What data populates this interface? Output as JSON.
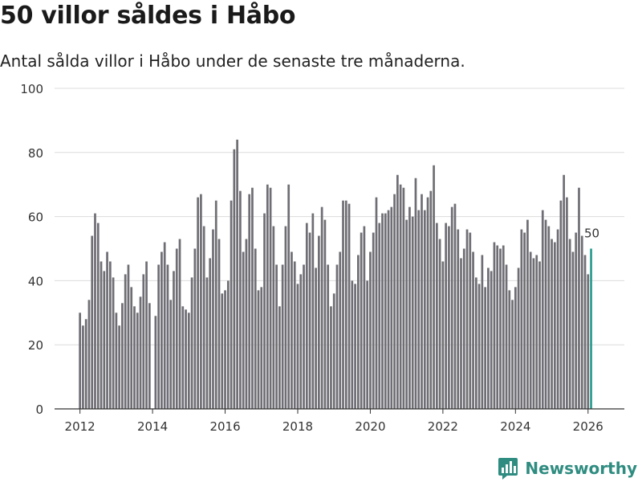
{
  "title": "50 villor såldes i Håbo",
  "subtitle": "Antal sålda villor i Håbo under de senaste tre månaderna.",
  "logo": {
    "text": "Newsworthy",
    "icon": "chart-logo-icon"
  },
  "colors": {
    "bar": "#6f6e74",
    "highlight": "#2a9d8f",
    "grid": "#dcdcdc",
    "axis": "#333333"
  },
  "chart_data": {
    "type": "bar",
    "title": "50 villor såldes i Håbo",
    "subtitle": "Antal sålda villor i Håbo under de senaste tre månaderna.",
    "xlabel": "",
    "ylabel": "",
    "ylim": [
      0,
      100
    ],
    "yticks": [
      0,
      20,
      40,
      60,
      80,
      100
    ],
    "xticks": [
      "2012",
      "2014",
      "2016",
      "2018",
      "2020",
      "2022",
      "2024",
      "2026"
    ],
    "x_start": "2012-01",
    "x_range": [
      2011.3,
      2027.0
    ],
    "grid": true,
    "highlight_label": "50",
    "values": [
      30,
      26,
      28,
      34,
      54,
      61,
      58,
      46,
      43,
      49,
      46,
      41,
      30,
      26,
      33,
      42,
      45,
      38,
      32,
      30,
      35,
      42,
      46,
      33,
      0,
      29,
      45,
      49,
      52,
      45,
      34,
      43,
      50,
      53,
      32,
      31,
      30,
      41,
      50,
      66,
      67,
      57,
      41,
      47,
      56,
      65,
      53,
      36,
      37,
      40,
      65,
      81,
      84,
      68,
      49,
      53,
      67,
      69,
      50,
      37,
      38,
      61,
      70,
      69,
      57,
      45,
      32,
      45,
      57,
      70,
      49,
      46,
      39,
      42,
      45,
      58,
      55,
      61,
      44,
      54,
      63,
      59,
      45,
      32,
      36,
      45,
      49,
      65,
      65,
      64,
      40,
      39,
      48,
      55,
      57,
      40,
      49,
      55,
      66,
      58,
      61,
      61,
      62,
      63,
      67,
      73,
      70,
      69,
      59,
      63,
      60,
      72,
      62,
      67,
      62,
      66,
      68,
      76,
      58,
      53,
      46,
      58,
      57,
      63,
      64,
      56,
      47,
      50,
      56,
      55,
      49,
      41,
      39,
      48,
      38,
      44,
      43,
      52,
      51,
      50,
      51,
      45,
      37,
      34,
      38,
      44,
      56,
      55,
      59,
      49,
      47,
      48,
      46,
      62,
      59,
      57,
      53,
      52,
      56,
      65,
      73,
      66,
      53,
      49,
      55,
      69,
      54,
      48,
      42,
      50
    ]
  }
}
